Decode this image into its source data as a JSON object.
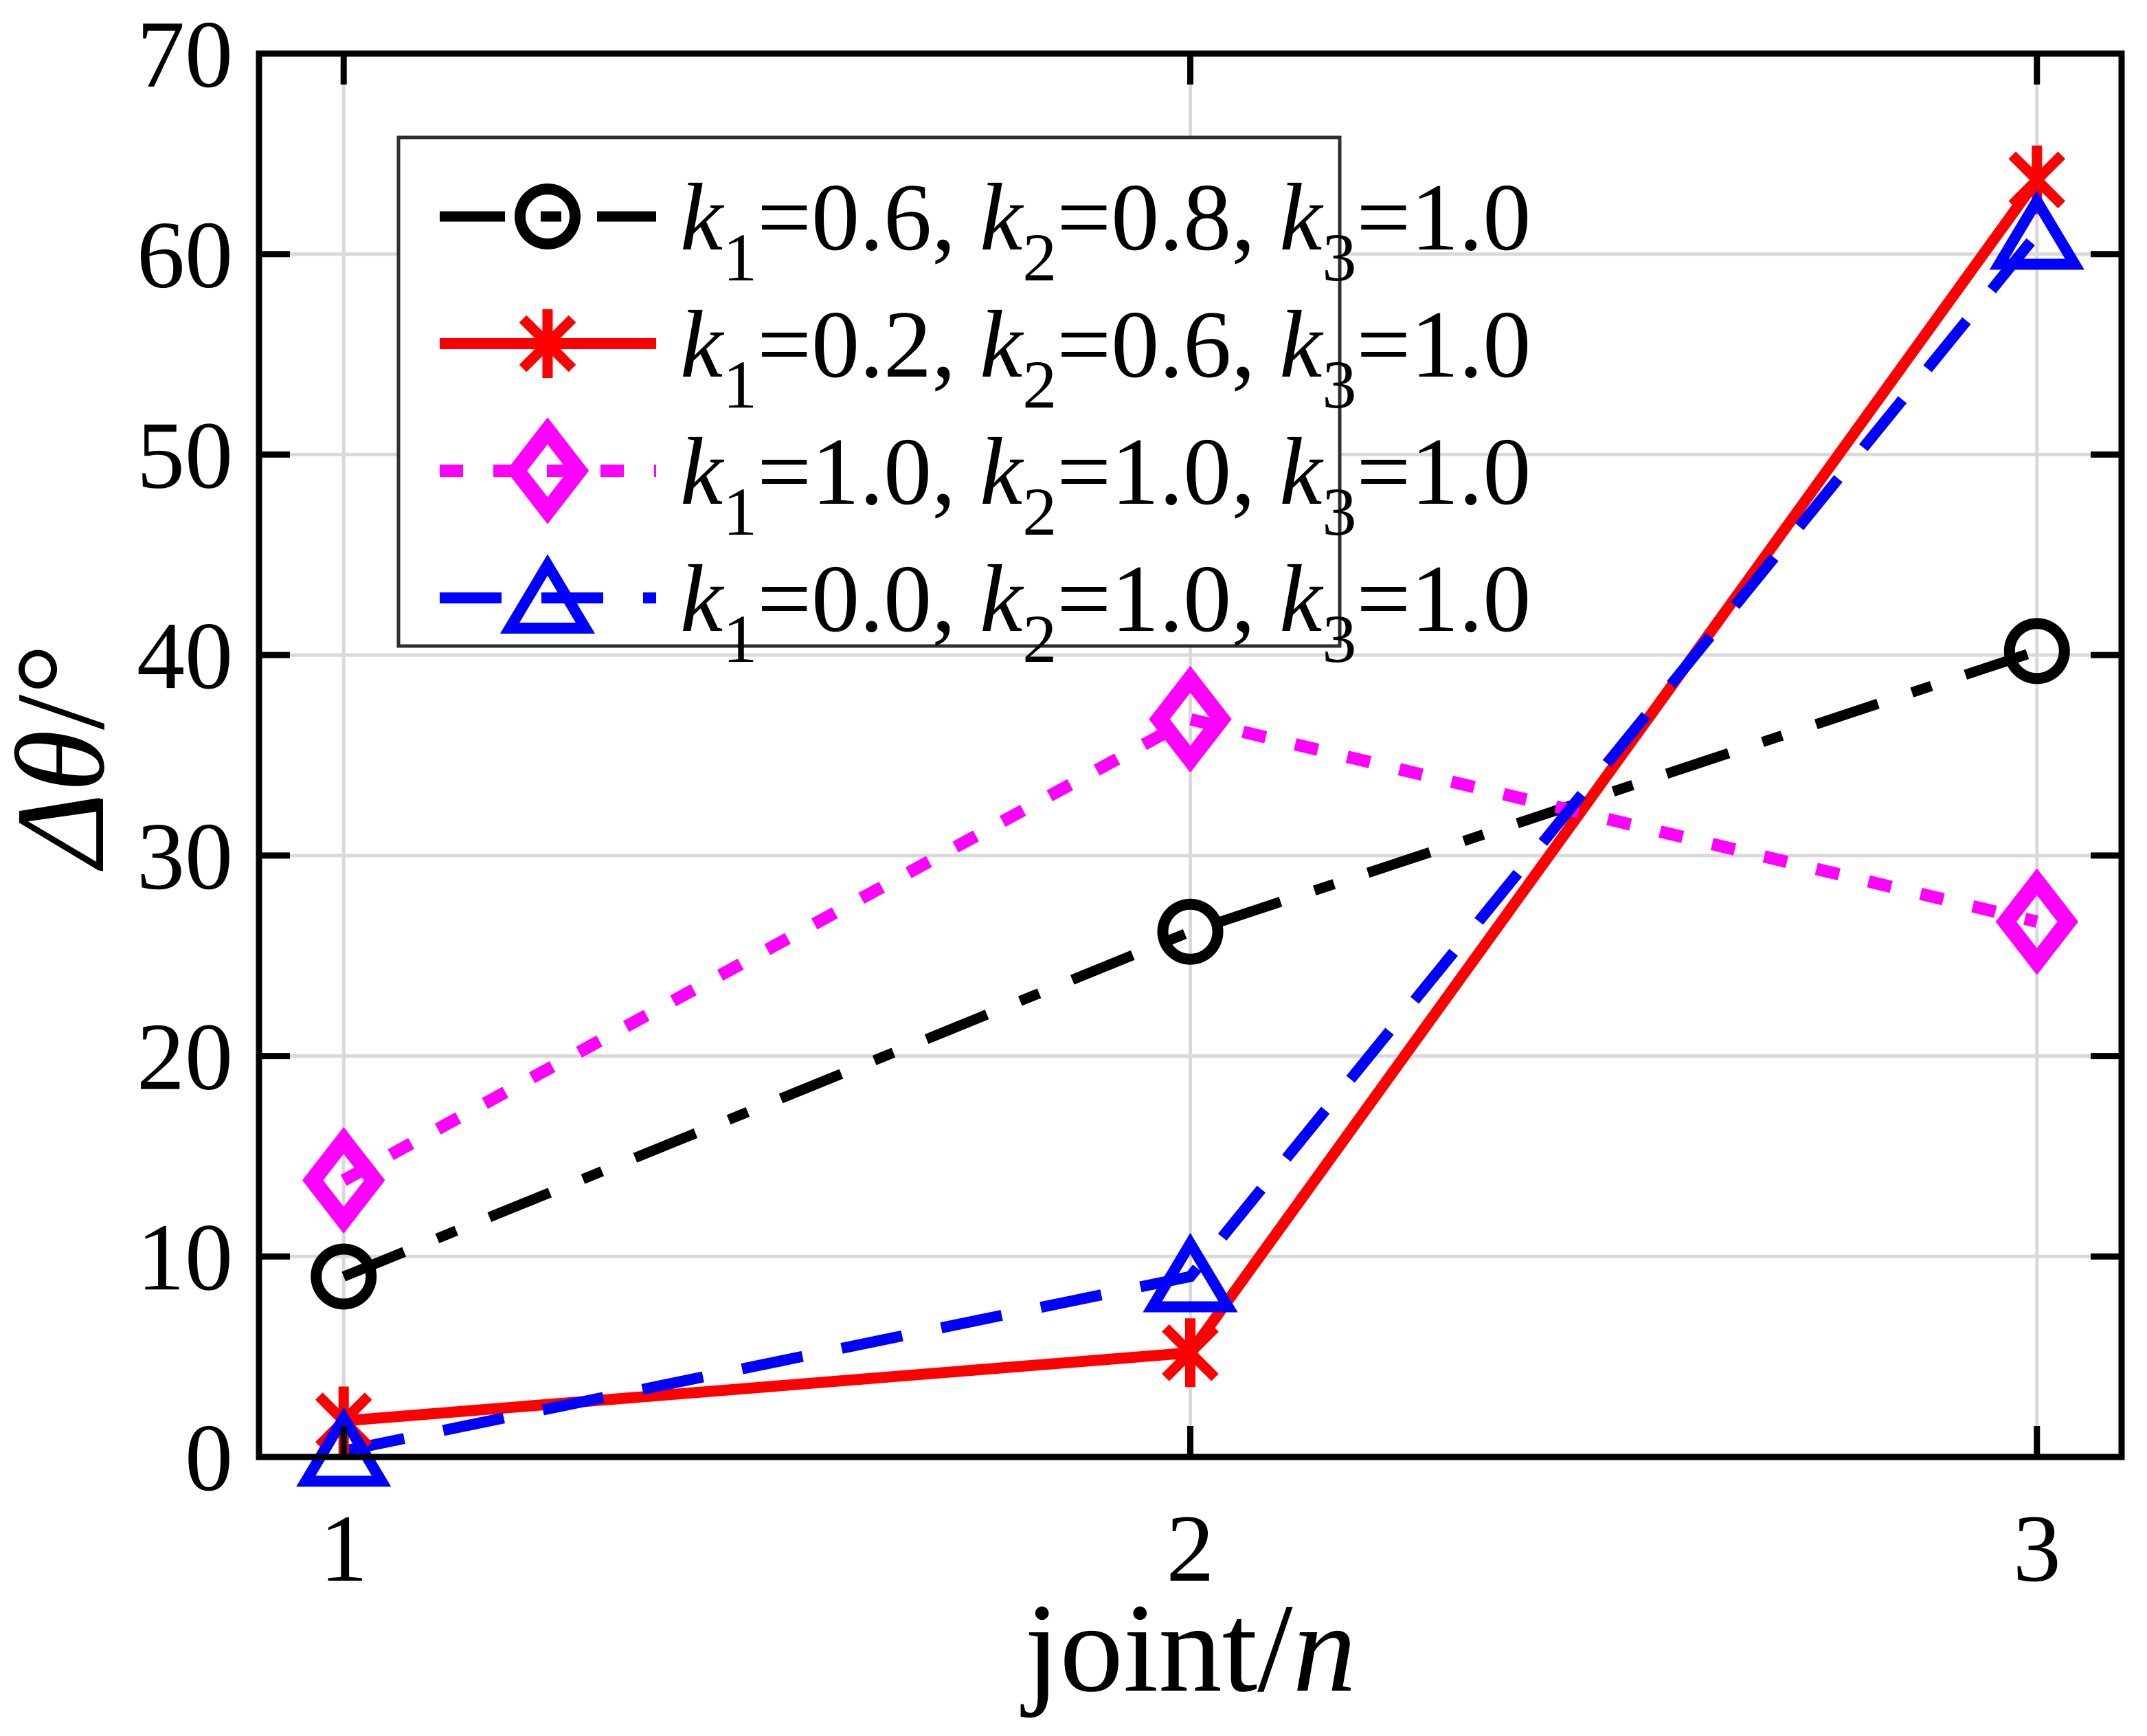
{
  "figure": {
    "background": "#ffffff"
  },
  "chart_data": {
    "type": "line",
    "title": "",
    "xlabel_text": "joint/n",
    "ylabel_text": "Δθ/°",
    "xlabel_runs": [
      {
        "t": "joint/",
        "style": "normal"
      },
      {
        "t": "n",
        "style": "italic"
      }
    ],
    "ylabel_runs": [
      {
        "t": "Δθ",
        "style": "italic"
      },
      {
        "t": "/°",
        "style": "normal"
      }
    ],
    "x": [
      1,
      2,
      3
    ],
    "xticks": [
      1,
      2,
      3
    ],
    "xtick_labels": [
      "1",
      "2",
      "3"
    ],
    "yticks": [
      0,
      10,
      20,
      30,
      40,
      50,
      60,
      70
    ],
    "ytick_labels": [
      "0",
      "10",
      "20",
      "30",
      "40",
      "50",
      "60",
      "70"
    ],
    "xlim": [
      0.9,
      3.1
    ],
    "ylim": [
      0,
      70
    ],
    "grid": true,
    "legend": {
      "position": "top-left",
      "border": true
    },
    "colors": {
      "grid": "#d9d9d9",
      "axis": "#000000",
      "legend_border": "#2e2e2e",
      "background": "#ffffff"
    },
    "series": [
      {
        "name": "k1=0.6, k2=0.8, k3=1.0",
        "color": "#000000",
        "linestyle": "dashdot",
        "marker": "circle",
        "values": [
          9.0,
          26.2,
          40.2
        ],
        "label_runs": [
          {
            "t": "k",
            "style": "italic"
          },
          {
            "t": "1",
            "style": "sub"
          },
          {
            "t": "=0.6, ",
            "style": "normal"
          },
          {
            "t": "k",
            "style": "italic"
          },
          {
            "t": "2",
            "style": "sub"
          },
          {
            "t": "=0.8, ",
            "style": "normal"
          },
          {
            "t": "k",
            "style": "italic"
          },
          {
            "t": "3",
            "style": "sub"
          },
          {
            "t": "=1.0",
            "style": "normal"
          }
        ]
      },
      {
        "name": "k1=0.2, k2=0.6, k3=1.0",
        "color": "#ff0000",
        "linestyle": "solid",
        "marker": "asterisk",
        "values": [
          1.8,
          5.2,
          63.7
        ],
        "label_runs": [
          {
            "t": "k",
            "style": "italic"
          },
          {
            "t": "1",
            "style": "sub"
          },
          {
            "t": "=0.2, ",
            "style": "normal"
          },
          {
            "t": "k",
            "style": "italic"
          },
          {
            "t": "2",
            "style": "sub"
          },
          {
            "t": "=0.6, ",
            "style": "normal"
          },
          {
            "t": "k",
            "style": "italic"
          },
          {
            "t": "3",
            "style": "sub"
          },
          {
            "t": "=1.0",
            "style": "normal"
          }
        ]
      },
      {
        "name": "k1=1.0, k2=1.0, k3=1.0",
        "color": "#ff00ff",
        "linestyle": "dotted",
        "marker": "diamond",
        "values": [
          13.8,
          36.8,
          26.7
        ],
        "label_runs": [
          {
            "t": "k",
            "style": "italic"
          },
          {
            "t": "1",
            "style": "sub"
          },
          {
            "t": "=1.0, ",
            "style": "normal"
          },
          {
            "t": "k",
            "style": "italic"
          },
          {
            "t": "2",
            "style": "sub"
          },
          {
            "t": "=1.0, ",
            "style": "normal"
          },
          {
            "t": "k",
            "style": "italic"
          },
          {
            "t": "3",
            "style": "sub"
          },
          {
            "t": "=1.0",
            "style": "normal"
          }
        ]
      },
      {
        "name": "k1=0.0, k2=1.0, k3=1.0",
        "color": "#0000ff",
        "linestyle": "dashed",
        "marker": "triangle",
        "values": [
          0.3,
          9.0,
          61.0
        ],
        "label_runs": [
          {
            "t": "k",
            "style": "italic"
          },
          {
            "t": "1",
            "style": "sub"
          },
          {
            "t": "=0.0, ",
            "style": "normal"
          },
          {
            "t": "k",
            "style": "italic"
          },
          {
            "t": "2",
            "style": "sub"
          },
          {
            "t": "=1.0, ",
            "style": "normal"
          },
          {
            "t": "k",
            "style": "italic"
          },
          {
            "t": "3",
            "style": "sub"
          },
          {
            "t": "=1.0",
            "style": "normal"
          }
        ]
      }
    ]
  }
}
